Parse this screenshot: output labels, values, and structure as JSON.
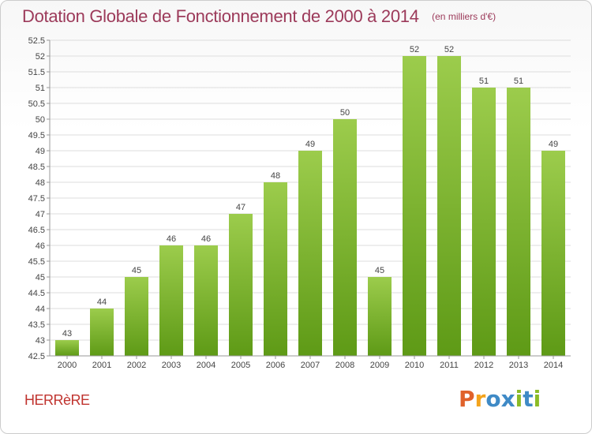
{
  "title": "Dotation Globale de Fonctionnement de 2000 à 2014",
  "unit_note": "(en milliers d'€)",
  "commune": "HERRèRE",
  "brand": {
    "text": "Proxiti",
    "colors": [
      "#e0622b",
      "#f3a31c",
      "#3f8ac6",
      "#3f8ac6",
      "#8bbb27",
      "#3f8ac6",
      "#8bbb27"
    ]
  },
  "colors": {
    "bar_top": "#9ccc4c",
    "bar_bottom": "#5e9a16",
    "title": "#9c3a5a",
    "grid": "#dddddd",
    "axis": "#999999"
  },
  "chart_data": {
    "type": "bar",
    "title": "Dotation Globale de Fonctionnement de 2000 à 2014",
    "ylabel": "(en milliers d'€)",
    "xlabel": "",
    "categories": [
      "2000",
      "2001",
      "2002",
      "2003",
      "2004",
      "2005",
      "2006",
      "2007",
      "2008",
      "2009",
      "2010",
      "2011",
      "2012",
      "2013",
      "2014"
    ],
    "values": [
      43,
      44,
      45,
      46,
      46,
      47,
      48,
      49,
      50,
      45,
      52,
      52,
      51,
      51,
      49
    ],
    "labels": [
      "43",
      "44",
      "45",
      "46",
      "46",
      "47",
      "48",
      "49",
      "50",
      "45",
      "52",
      "52",
      "51",
      "51",
      "49"
    ],
    "ylim": [
      42.5,
      52.5
    ],
    "yticks": [
      "42.5",
      "43",
      "43.5",
      "44",
      "44.5",
      "45",
      "45.5",
      "46",
      "46.5",
      "47",
      "47.5",
      "48",
      "48.5",
      "49",
      "49.5",
      "50",
      "50.5",
      "51",
      "51.5",
      "52",
      "52.5"
    ],
    "grid": true
  }
}
